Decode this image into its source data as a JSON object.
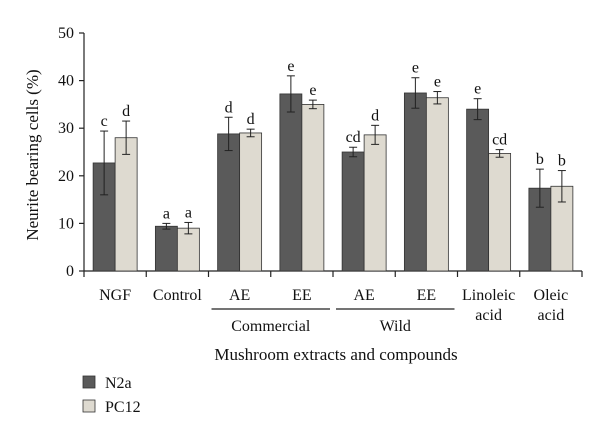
{
  "chart_data": {
    "type": "bar",
    "ylabel": "Neurite bearing cells (%)",
    "xlabel": "Mushroom extracts and compounds",
    "ylim": [
      0,
      50
    ],
    "yticks": [
      0,
      10,
      20,
      30,
      40,
      50
    ],
    "categories": [
      "NGF",
      "Control",
      "AE",
      "EE",
      "AE",
      "EE",
      "Linoleic acid",
      "Oleic acid"
    ],
    "category_lines": [
      [
        "NGF"
      ],
      [
        "Control"
      ],
      [
        "AE"
      ],
      [
        "EE"
      ],
      [
        "AE"
      ],
      [
        "EE"
      ],
      [
        "Linoleic",
        "acid"
      ],
      [
        "Oleic",
        "acid"
      ]
    ],
    "groups": [
      {
        "label": "Commercial",
        "categories": [
          2,
          3
        ]
      },
      {
        "label": "Wild",
        "categories": [
          4,
          5
        ]
      }
    ],
    "series": [
      {
        "name": "N2a",
        "color": "#5a5a5a",
        "values": [
          22.7,
          9.4,
          28.8,
          37.2,
          25.0,
          37.4,
          34.0,
          17.4
        ],
        "errors": [
          6.7,
          0.6,
          3.5,
          3.8,
          1.0,
          3.2,
          2.2,
          4.0
        ],
        "labels": [
          "c",
          "a",
          "d",
          "e",
          "cd",
          "e",
          "e",
          "b"
        ]
      },
      {
        "name": "PC12",
        "color": "#dedad0",
        "values": [
          28.0,
          9.0,
          29.0,
          35.0,
          28.6,
          36.4,
          24.7,
          17.8
        ],
        "errors": [
          3.5,
          1.2,
          0.8,
          0.9,
          2.0,
          1.3,
          0.8,
          3.3
        ],
        "labels": [
          "d",
          "a",
          "d",
          "e",
          "d",
          "e",
          "cd",
          "b"
        ]
      }
    ],
    "legend_position": "bottom-left",
    "grid": false
  }
}
